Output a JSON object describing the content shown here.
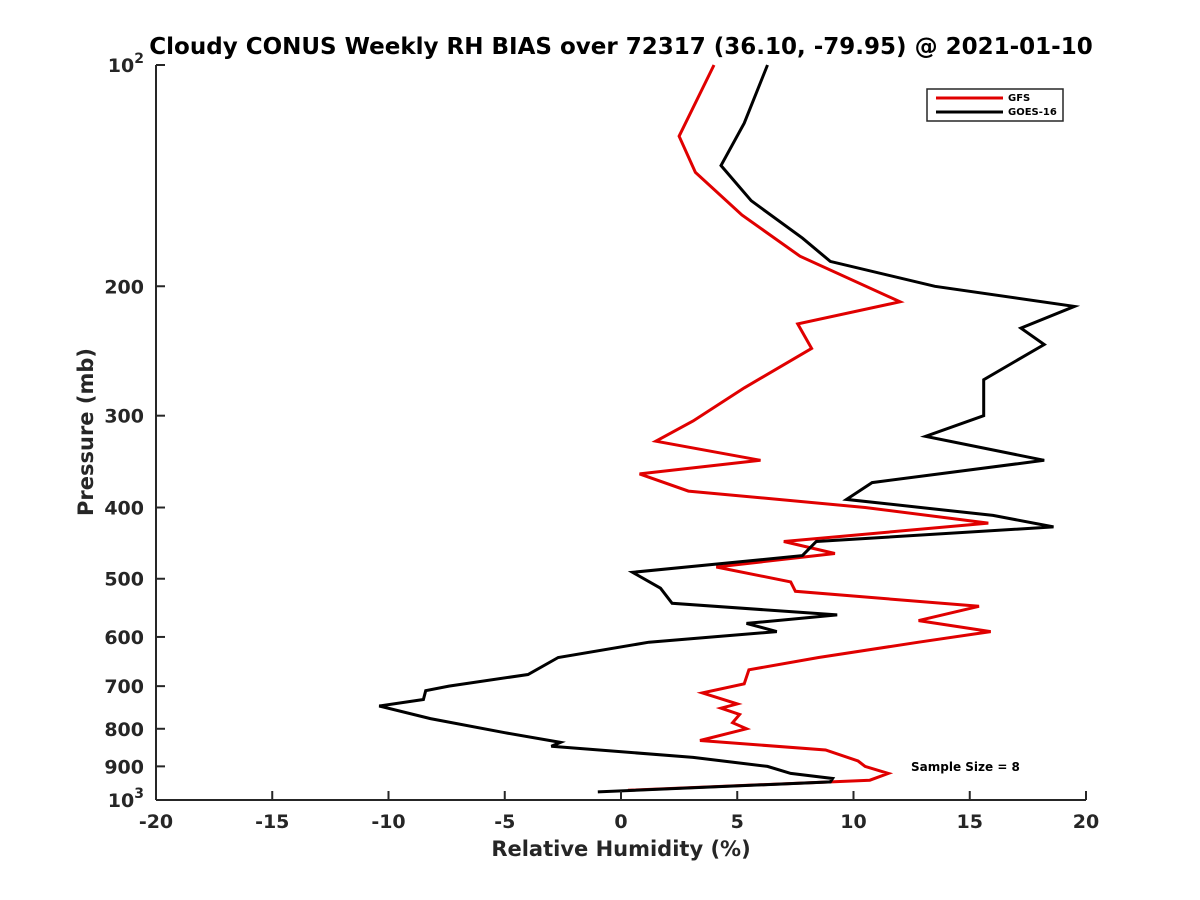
{
  "chart_data": {
    "type": "line",
    "title": "Cloudy CONUS Weekly RH BIAS over 72317 (36.10, -79.95) @ 2021-01-10",
    "xlabel": "Relative Humidity (%)",
    "ylabel": "Pressure (mb)",
    "xlim": [
      -20,
      20
    ],
    "ylim": [
      100,
      1000
    ],
    "y_scale": "log",
    "y_reversed": true,
    "grid": false,
    "legend_position": "top-right",
    "x_ticks": [
      -20,
      -15,
      -10,
      -5,
      0,
      5,
      10,
      15,
      20
    ],
    "y_ticks": [
      {
        "value": 100,
        "label": "10",
        "sup": "2"
      },
      {
        "value": 200,
        "label": "200",
        "sup": ""
      },
      {
        "value": 300,
        "label": "300",
        "sup": ""
      },
      {
        "value": 400,
        "label": "400",
        "sup": ""
      },
      {
        "value": 500,
        "label": "500",
        "sup": ""
      },
      {
        "value": 600,
        "label": "600",
        "sup": ""
      },
      {
        "value": 700,
        "label": "700",
        "sup": ""
      },
      {
        "value": 800,
        "label": "800",
        "sup": ""
      },
      {
        "value": 900,
        "label": "900",
        "sup": ""
      },
      {
        "value": 1000,
        "label": "10",
        "sup": "3"
      }
    ],
    "annotation": "Sample Size = 8",
    "series": [
      {
        "name": "GFS",
        "color": "#e00000",
        "points": [
          [
            4.0,
            100
          ],
          [
            2.5,
            125
          ],
          [
            3.2,
            140
          ],
          [
            5.2,
            160
          ],
          [
            7.7,
            182
          ],
          [
            12.0,
            210
          ],
          [
            7.6,
            225
          ],
          [
            8.2,
            243
          ],
          [
            5.3,
            275
          ],
          [
            3.1,
            305
          ],
          [
            1.5,
            325
          ],
          [
            6.0,
            345
          ],
          [
            0.8,
            360
          ],
          [
            2.9,
            380
          ],
          [
            10.5,
            400
          ],
          [
            15.8,
            420
          ],
          [
            7.0,
            445
          ],
          [
            9.2,
            462
          ],
          [
            4.1,
            482
          ],
          [
            7.3,
            505
          ],
          [
            7.5,
            520
          ],
          [
            15.4,
            545
          ],
          [
            12.8,
            570
          ],
          [
            15.9,
            590
          ],
          [
            12.8,
            610
          ],
          [
            8.5,
            640
          ],
          [
            5.5,
            665
          ],
          [
            5.3,
            695
          ],
          [
            3.5,
            715
          ],
          [
            5.0,
            740
          ],
          [
            4.3,
            750
          ],
          [
            5.1,
            765
          ],
          [
            4.8,
            785
          ],
          [
            5.4,
            800
          ],
          [
            3.4,
            830
          ],
          [
            8.8,
            855
          ],
          [
            10.2,
            885
          ],
          [
            10.5,
            900
          ],
          [
            11.5,
            920
          ],
          [
            10.7,
            940
          ],
          [
            0.3,
            970
          ]
        ]
      },
      {
        "name": "GOES-16",
        "color": "#000000",
        "points": [
          [
            6.3,
            100
          ],
          [
            5.3,
            120
          ],
          [
            4.3,
            137
          ],
          [
            5.6,
            153
          ],
          [
            7.8,
            172
          ],
          [
            9.0,
            185
          ],
          [
            13.5,
            200
          ],
          [
            19.5,
            213
          ],
          [
            17.2,
            228
          ],
          [
            18.2,
            240
          ],
          [
            15.6,
            268
          ],
          [
            15.6,
            300
          ],
          [
            13.1,
            320
          ],
          [
            18.2,
            345
          ],
          [
            10.8,
            370
          ],
          [
            9.7,
            390
          ],
          [
            16.0,
            410
          ],
          [
            18.6,
            425
          ],
          [
            8.4,
            445
          ],
          [
            7.8,
            465
          ],
          [
            0.5,
            490
          ],
          [
            1.7,
            515
          ],
          [
            2.2,
            540
          ],
          [
            9.3,
            560
          ],
          [
            5.4,
            575
          ],
          [
            6.7,
            590
          ],
          [
            1.2,
            610
          ],
          [
            -2.7,
            640
          ],
          [
            -4.0,
            675
          ],
          [
            -7.4,
            700
          ],
          [
            -8.4,
            710
          ],
          [
            -8.5,
            730
          ],
          [
            -10.4,
            745
          ],
          [
            -8.2,
            775
          ],
          [
            -5.0,
            810
          ],
          [
            -2.6,
            835
          ],
          [
            -3.0,
            845
          ],
          [
            3.1,
            875
          ],
          [
            6.3,
            900
          ],
          [
            7.3,
            920
          ],
          [
            9.1,
            935
          ],
          [
            9.0,
            945
          ],
          [
            -1.0,
            975
          ]
        ]
      }
    ]
  }
}
